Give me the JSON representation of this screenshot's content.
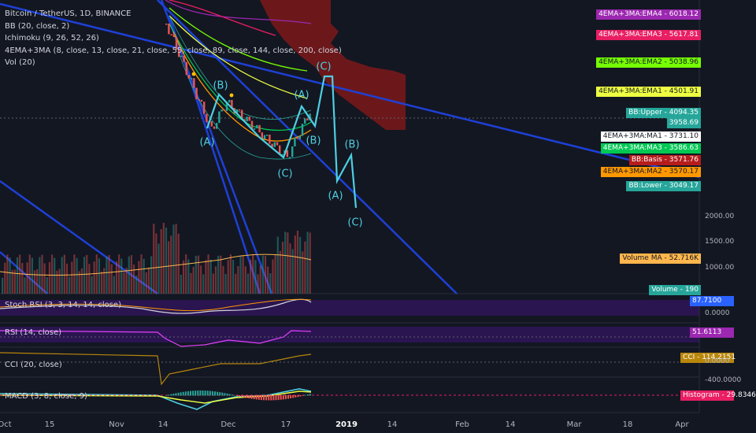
{
  "header": {
    "title": "Bitcoin / TetherUS, 1D, BINANCE",
    "indicators": [
      "BB (20, close, 2)",
      "Ichimoku (9, 26, 52, 26)",
      "4EMA+3MA (8, close, 13, close, 21, close, 55, close, 89, close, 144, close, 200, close)",
      "Vol (20)"
    ]
  },
  "panes": {
    "stoch": "Stoch RSI (3, 3, 14, 14, close)",
    "rsi": "RSI (14, close)",
    "cci": "CCI (20, close)",
    "macd": "MACD (3, 8, close, 9)"
  },
  "price_badges": [
    {
      "label": "4EMA+3MA:EMA4",
      "value": "6018.12",
      "color": "#9c27b0",
      "text": "#ffffff"
    },
    {
      "label": "4EMA+3MA:EMA3",
      "value": "5617.81",
      "color": "#e91e63",
      "text": "#ffffff"
    },
    {
      "label": "4EMA+3MA:EMA2",
      "value": "5038.96",
      "color": "#76ff03",
      "text": "#131722"
    },
    {
      "label": "4EMA+3MA:EMA1",
      "value": "4501.91",
      "color": "#eeff41",
      "text": "#131722"
    },
    {
      "label": "BB:Upper",
      "value": "4094.35",
      "color": "#26a69a",
      "text": "#ffffff"
    },
    {
      "label": "",
      "value": "3958.69",
      "color": "#26a69a",
      "text": "#ffffff"
    },
    {
      "label": "4EMA+3MA:MA1",
      "value": "3731.10",
      "color": "#ffffff",
      "text": "#131722"
    },
    {
      "label": "4EMA+3MA:MA3",
      "value": "3586.63",
      "color": "#00c853",
      "text": "#ffffff"
    },
    {
      "label": "BB:Basis",
      "value": "3571.76",
      "color": "#b71c1c",
      "text": "#ffffff"
    },
    {
      "label": "4EMA+3MA:MA2",
      "value": "3570.17",
      "color": "#ff9800",
      "text": "#131722"
    },
    {
      "label": "BB:Lower",
      "value": "3049.17",
      "color": "#26a69a",
      "text": "#ffffff"
    },
    {
      "label": "Volume MA",
      "value": "52.716K",
      "color": "#ffb74d",
      "text": "#131722"
    },
    {
      "label": "Volume",
      "value": "190",
      "color": "#26a69a",
      "text": "#ffffff"
    }
  ],
  "pane_badges": [
    {
      "label": "",
      "value": "87.7100",
      "color": "#2962ff",
      "text": "#ffffff"
    },
    {
      "label": "",
      "value": "51.6113",
      "color": "#9c27b0",
      "text": "#ffffff"
    },
    {
      "label": "CCI",
      "value": "114.2151",
      "color": "#b8860b",
      "text": "#ffffff"
    },
    {
      "label": "Histogram",
      "value": "29.8346",
      "color": "#e91e63",
      "text": "#ffffff"
    }
  ],
  "y_ticks": [
    "2000.00",
    "1500.00",
    "1000.00",
    "0.0000",
    "0.0000",
    "-400.0000"
  ],
  "x_ticks": [
    "Oct",
    "15",
    "Nov",
    "14",
    "Dec",
    "17",
    "2019",
    "14",
    "Feb",
    "14",
    "Mar",
    "18",
    "Apr"
  ],
  "wave_labels": [
    "(A)",
    "(B)",
    "(C)",
    "(A)",
    "(B)",
    "(C)",
    "(A)",
    "(B)",
    "(C)"
  ],
  "colors": {
    "wave": "#4dd0e1",
    "trend": "#1e40d6",
    "cloud": "#8b1a1a",
    "up": "#26a69a",
    "down": "#ef5350"
  },
  "chart_data": {
    "type": "line",
    "title": "Bitcoin / TetherUS, 1D, BINANCE",
    "y_axis_visible_ticks": [
      1000,
      1500,
      2000
    ],
    "projected_wave_path": [
      {
        "label": "(C)",
        "approx_price": 5150
      },
      {
        "label": "(A)",
        "approx_price": 3100
      },
      {
        "label": "(B)",
        "approx_price": 3600
      },
      {
        "label": "(C)",
        "approx_price": 2200
      }
    ],
    "last_values": {
      "EMA4": 6018.12,
      "EMA3": 5617.81,
      "EMA2": 5038.96,
      "EMA1": 4501.91,
      "BB_Upper": 4094.35,
      "Close": 3958.69,
      "MA1": 3731.1,
      "MA3": 3586.63,
      "BB_Basis": 3571.76,
      "MA2": 3570.17,
      "BB_Lower": 3049.17,
      "Volume_MA": "52.716K",
      "StochRSI": 87.71,
      "RSI": 51.6113,
      "CCI": 114.2151,
      "MACD_Histogram": 29.8346
    }
  }
}
